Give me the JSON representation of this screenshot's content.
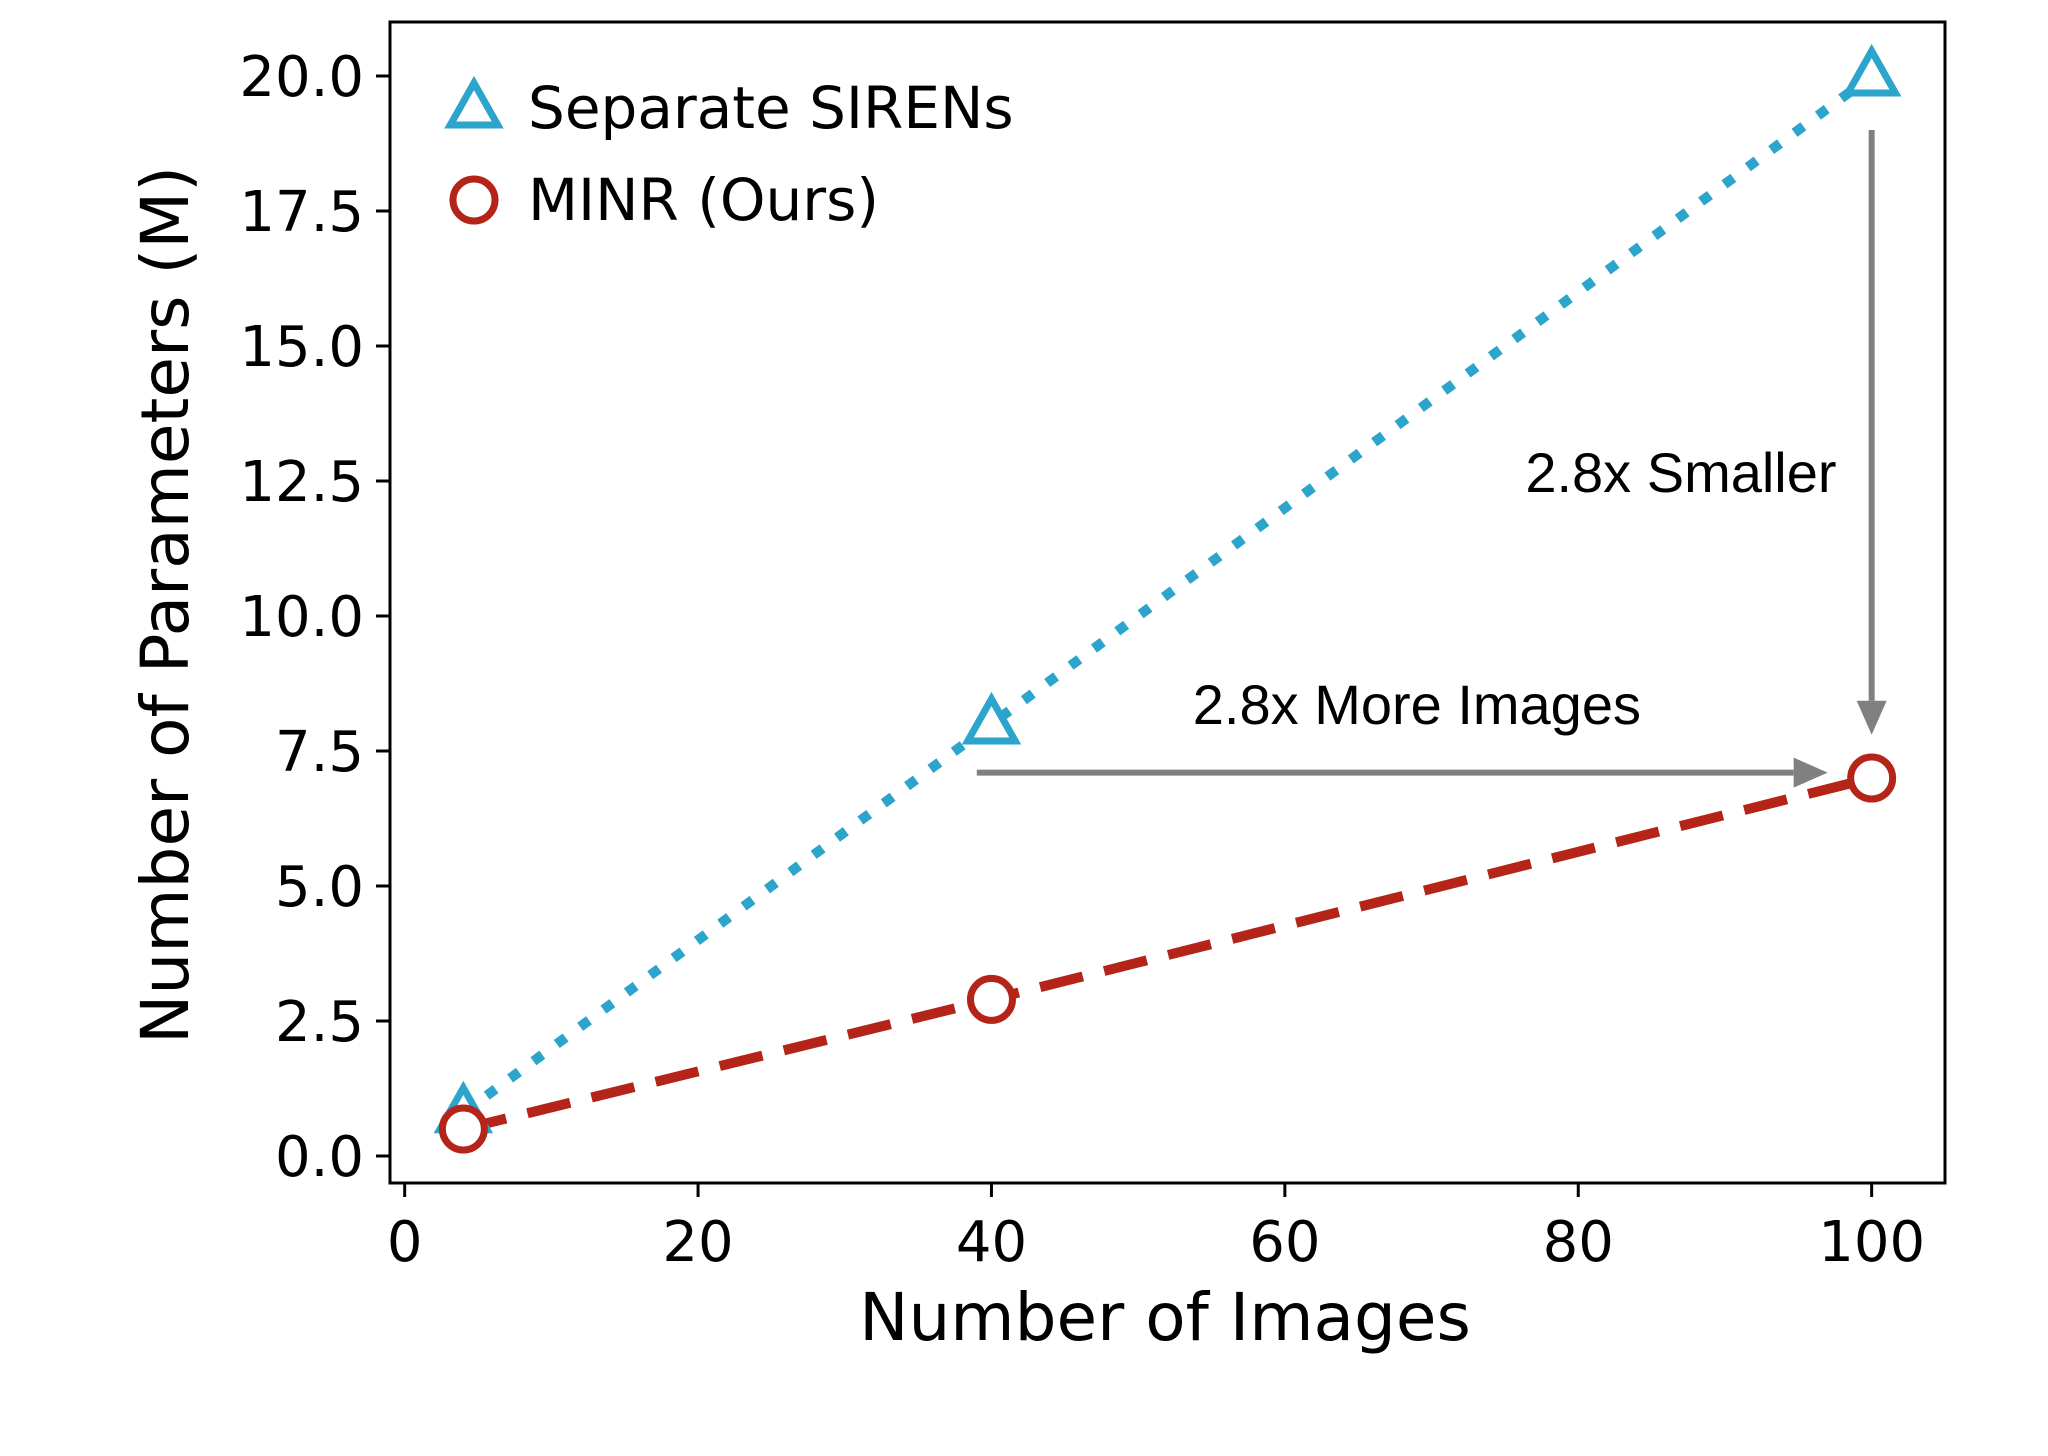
{
  "chart_data": {
    "type": "line",
    "title": "",
    "xlabel": "Number of Images",
    "ylabel": "Number of Parameters (M)",
    "xlim": [
      -1,
      105
    ],
    "ylim": [
      -0.5,
      21.0
    ],
    "xticks": [
      0,
      20,
      40,
      60,
      80,
      100
    ],
    "xtick_labels": [
      "0",
      "20",
      "40",
      "60",
      "80",
      "100"
    ],
    "yticks": [
      0.0,
      2.5,
      5.0,
      7.5,
      10.0,
      12.5,
      15.0,
      17.5,
      20.0
    ],
    "ytick_labels": [
      "0.0",
      "2.5",
      "5.0",
      "7.5",
      "10.0",
      "12.5",
      "15.0",
      "17.5",
      "20.0"
    ],
    "grid": false,
    "legend_position": "top-left",
    "series": [
      {
        "name": "Separate SIRENs",
        "x": [
          4,
          40,
          100
        ],
        "y": [
          0.8,
          8.0,
          20.0
        ],
        "color": "#2ca4cc",
        "marker": "triangle",
        "linestyle": "dotted"
      },
      {
        "name": "MINR (Ours)",
        "x": [
          4,
          40,
          100
        ],
        "y": [
          0.5,
          2.9,
          7.0
        ],
        "color": "#b52418",
        "marker": "circle",
        "linestyle": "dashed"
      }
    ],
    "annotations": [
      {
        "text": "2.8x More Images",
        "arrow": "horizontal",
        "from": [
          39,
          7.1
        ],
        "to": [
          97,
          7.1
        ],
        "text_at": [
          69,
          8.0
        ]
      },
      {
        "text": "2.8x Smaller",
        "arrow": "vertical",
        "from": [
          100,
          19.0
        ],
        "to": [
          100,
          7.8
        ],
        "text_at": [
          87,
          12.3
        ]
      }
    ],
    "annotation_color": "#808080"
  }
}
